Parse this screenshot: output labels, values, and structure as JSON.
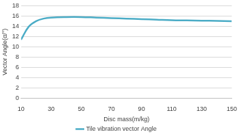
{
  "chart_data": {
    "type": "line",
    "x_label": "Disc mass(m/kg)",
    "y_label": "Vector Angle(α/°)",
    "x": [
      10,
      15,
      20,
      25,
      30,
      40,
      50,
      60,
      70,
      80,
      90,
      100,
      110,
      120,
      130,
      140,
      150
    ],
    "series": [
      {
        "name": "Tile vibration vector Angle",
        "color": "#4bacc6",
        "values": [
          11.4,
          13.9,
          15.0,
          15.5,
          15.7,
          15.8,
          15.8,
          15.7,
          15.6,
          15.5,
          15.4,
          15.3,
          15.2,
          15.15,
          15.1,
          15.05,
          15.0
        ]
      }
    ],
    "xlim": [
      10,
      150
    ],
    "xticks": [
      10,
      30,
      50,
      70,
      90,
      110,
      130,
      150
    ],
    "ylim": [
      0,
      18
    ],
    "yticks": [
      0,
      2,
      4,
      6,
      8,
      10,
      12,
      14,
      16,
      18
    ],
    "grid": true,
    "legend": "bottom"
  }
}
